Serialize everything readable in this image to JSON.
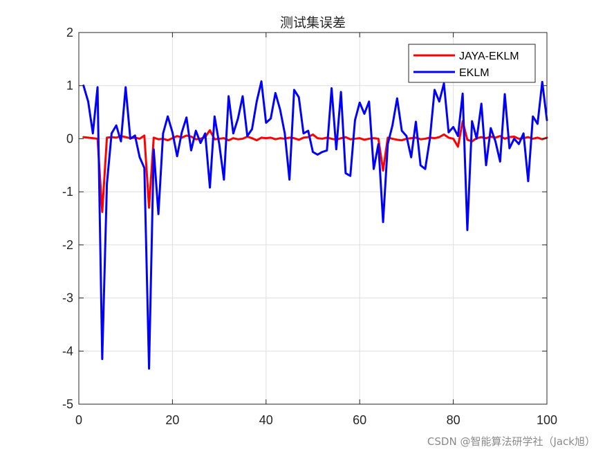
{
  "chart_data": {
    "type": "line",
    "title": "测试集误差",
    "xlabel": "",
    "ylabel": "",
    "xlim": [
      0,
      100
    ],
    "ylim": [
      -5,
      2
    ],
    "xticks": [
      0,
      20,
      40,
      60,
      80,
      100
    ],
    "yticks": [
      2,
      1,
      0,
      -1,
      -2,
      -3,
      -4,
      -5
    ],
    "grid": true,
    "legend_position": "top-right",
    "x": [
      1,
      2,
      3,
      4,
      5,
      6,
      7,
      8,
      9,
      10,
      11,
      12,
      13,
      14,
      15,
      16,
      17,
      18,
      19,
      20,
      21,
      22,
      23,
      24,
      25,
      26,
      27,
      28,
      29,
      30,
      31,
      32,
      33,
      34,
      35,
      36,
      37,
      38,
      39,
      40,
      41,
      42,
      43,
      44,
      45,
      46,
      47,
      48,
      49,
      50,
      51,
      52,
      53,
      54,
      55,
      56,
      57,
      58,
      59,
      60,
      61,
      62,
      63,
      64,
      65,
      66,
      67,
      68,
      69,
      70,
      71,
      72,
      73,
      74,
      75,
      76,
      77,
      78,
      79,
      80,
      81,
      82,
      83,
      84,
      85,
      86,
      87,
      88,
      89,
      90,
      91,
      92,
      93,
      94,
      95,
      96,
      97,
      98,
      99,
      100
    ],
    "series": [
      {
        "name": "JAYA-EKLM",
        "color": "#ff0000",
        "values": [
          0.03,
          0.02,
          0.01,
          0.0,
          -1.38,
          0.02,
          0.03,
          0.02,
          0.05,
          0.03,
          0.01,
          0.02,
          0.0,
          0.06,
          -1.3,
          0.02,
          -0.01,
          0.0,
          -0.03,
          0.01,
          0.05,
          0.02,
          0.06,
          0.04,
          -0.01,
          0.0,
          0.03,
          0.16,
          -0.01,
          0.0,
          0.01,
          -0.03,
          0.01,
          -0.01,
          0.0,
          0.04,
          0.01,
          -0.03,
          0.02,
          0.01,
          0.02,
          -0.01,
          0.01,
          0.0,
          0.02,
          0.01,
          -0.02,
          0.02,
          0.03,
          0.08,
          0.01,
          0.0,
          0.02,
          0.0,
          -0.02,
          0.01,
          0.03,
          -0.01,
          0.0,
          0.01,
          -0.02,
          0.0,
          0.01,
          0.0,
          -0.6,
          0.02,
          0.0,
          -0.02,
          -0.03,
          0.0,
          0.01,
          0.02,
          -0.01,
          0.0,
          0.02,
          0.01,
          0.03,
          0.08,
          0.02,
          0.0,
          -0.15,
          0.33,
          -0.02,
          -0.05,
          0.01,
          0.03,
          0.01,
          0.04,
          0.02,
          0.05,
          0.0,
          0.03,
          0.04,
          0.0,
          0.01,
          0.03,
          0.0,
          0.02,
          -0.01,
          0.02
        ]
      },
      {
        "name": "EKLM",
        "color": "#0000ff",
        "values": [
          1.0,
          0.7,
          0.1,
          0.97,
          -4.15,
          -0.85,
          0.1,
          0.25,
          -0.05,
          0.97,
          0.0,
          0.06,
          -0.35,
          -0.55,
          -4.33,
          -0.2,
          -1.42,
          0.1,
          0.42,
          0.12,
          -0.33,
          0.12,
          0.4,
          -0.22,
          0.15,
          -0.08,
          0.1,
          -0.92,
          0.42,
          -0.1,
          -0.77,
          0.8,
          0.1,
          0.38,
          0.8,
          0.05,
          0.18,
          0.7,
          1.08,
          0.3,
          0.38,
          0.86,
          0.55,
          0.1,
          -0.77,
          0.92,
          0.78,
          0.1,
          0.15,
          -0.25,
          -0.3,
          -0.25,
          -0.22,
          0.95,
          -0.2,
          0.88,
          -0.65,
          -0.7,
          0.35,
          0.68,
          0.47,
          0.7,
          -0.57,
          -0.1,
          -1.57,
          -0.1,
          0.25,
          0.76,
          0.15,
          0.05,
          -0.35,
          0.32,
          -0.5,
          -0.57,
          0.0,
          0.92,
          0.7,
          1.04,
          0.12,
          0.22,
          0.05,
          0.85,
          -1.72,
          0.33,
          0.0,
          0.66,
          -0.5,
          0.2,
          -0.05,
          -0.43,
          0.84,
          -0.18,
          0.0,
          -0.1,
          0.1,
          -0.8,
          0.42,
          0.28,
          1.07,
          0.35
        ]
      }
    ]
  },
  "watermark": "CSDN @智能算法研学社（Jack旭）"
}
